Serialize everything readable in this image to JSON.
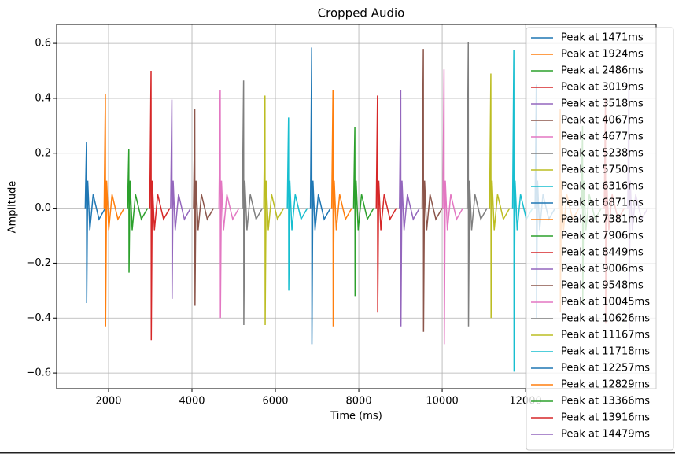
{
  "chart_data": {
    "type": "line",
    "title": "Cropped Audio",
    "xlabel": "Time (ms)",
    "ylabel": "Amplitude",
    "xlim": [
      755,
      15130
    ],
    "ylim": [
      -0.657,
      0.669
    ],
    "xticks": [
      2000,
      4000,
      6000,
      8000,
      10000,
      12000
    ],
    "yticks": [
      {
        "value": -0.6,
        "label": "−0.6"
      },
      {
        "value": -0.4,
        "label": "−0.4"
      },
      {
        "value": -0.2,
        "label": "−0.2"
      },
      {
        "value": 0,
        "label": "0.0"
      },
      0.2,
      0.4,
      0.6
    ],
    "grid": true,
    "legend": "upper right",
    "series": [
      {
        "name": "Peak at 1471ms",
        "color": "#1f77b4",
        "x": [
          1441,
          1471,
          1476,
          1501,
          1551,
          1631,
          1771,
          1921
        ],
        "values": [
          0,
          0.24,
          -0.345,
          0.1,
          -0.08,
          0.05,
          -0.04,
          0
        ]
      },
      {
        "name": "Peak at 1924ms",
        "color": "#ff7f0e",
        "x": [
          1894,
          1924,
          1929,
          1954,
          2004,
          2084,
          2224,
          2374
        ],
        "values": [
          0,
          0.415,
          -0.43,
          0.1,
          -0.08,
          0.05,
          -0.04,
          0
        ]
      },
      {
        "name": "Peak at 2486ms",
        "color": "#2ca02c",
        "x": [
          2456,
          2486,
          2491,
          2516,
          2566,
          2646,
          2786,
          2936
        ],
        "values": [
          0,
          0.215,
          -0.235,
          0.1,
          -0.08,
          0.05,
          -0.04,
          0
        ]
      },
      {
        "name": "Peak at 3019ms",
        "color": "#d62728",
        "x": [
          2989,
          3019,
          3024,
          3049,
          3099,
          3179,
          3319,
          3469
        ],
        "values": [
          0,
          0.5,
          -0.48,
          0.1,
          -0.08,
          0.05,
          -0.04,
          0
        ]
      },
      {
        "name": "Peak at 3518ms",
        "color": "#9467bd",
        "x": [
          3488,
          3518,
          3523,
          3548,
          3598,
          3678,
          3818,
          3968
        ],
        "values": [
          0,
          0.395,
          -0.33,
          0.1,
          -0.08,
          0.05,
          -0.04,
          0
        ]
      },
      {
        "name": "Peak at 4067ms",
        "color": "#8c564b",
        "x": [
          4037,
          4067,
          4072,
          4097,
          4147,
          4227,
          4367,
          4517
        ],
        "values": [
          0,
          0.36,
          -0.355,
          0.1,
          -0.08,
          0.05,
          -0.04,
          0
        ]
      },
      {
        "name": "Peak at 4677ms",
        "color": "#e377c2",
        "x": [
          4647,
          4677,
          4682,
          4707,
          4757,
          4837,
          4977,
          5127
        ],
        "values": [
          0,
          0.43,
          -0.4,
          0.1,
          -0.08,
          0.05,
          -0.04,
          0
        ]
      },
      {
        "name": "Peak at 5238ms",
        "color": "#7f7f7f",
        "x": [
          5208,
          5238,
          5243,
          5268,
          5318,
          5398,
          5538,
          5688
        ],
        "values": [
          0,
          0.465,
          -0.425,
          0.1,
          -0.08,
          0.05,
          -0.04,
          0
        ]
      },
      {
        "name": "Peak at 5750ms",
        "color": "#bcbd22",
        "x": [
          5720,
          5750,
          5755,
          5780,
          5830,
          5910,
          6050,
          6200
        ],
        "values": [
          0,
          0.41,
          -0.425,
          0.1,
          -0.08,
          0.05,
          -0.04,
          0
        ]
      },
      {
        "name": "Peak at 6316ms",
        "color": "#17becf",
        "x": [
          6286,
          6316,
          6321,
          6346,
          6396,
          6476,
          6616,
          6766
        ],
        "values": [
          0,
          0.33,
          -0.3,
          0.1,
          -0.08,
          0.05,
          -0.04,
          0
        ]
      },
      {
        "name": "Peak at 6871ms",
        "color": "#1f77b4",
        "x": [
          6841,
          6871,
          6876,
          6901,
          6951,
          7031,
          7171,
          7321
        ],
        "values": [
          0,
          0.585,
          -0.495,
          0.1,
          -0.08,
          0.05,
          -0.04,
          0
        ]
      },
      {
        "name": "Peak at 7381ms",
        "color": "#ff7f0e",
        "x": [
          7351,
          7381,
          7386,
          7411,
          7461,
          7541,
          7681,
          7831
        ],
        "values": [
          0,
          0.43,
          -0.43,
          0.1,
          -0.08,
          0.05,
          -0.04,
          0
        ]
      },
      {
        "name": "Peak at 7906ms",
        "color": "#2ca02c",
        "x": [
          7876,
          7906,
          7911,
          7936,
          7986,
          8066,
          8206,
          8356
        ],
        "values": [
          0,
          0.295,
          -0.32,
          0.1,
          -0.08,
          0.05,
          -0.04,
          0
        ]
      },
      {
        "name": "Peak at 8449ms",
        "color": "#d62728",
        "x": [
          8419,
          8449,
          8454,
          8479,
          8529,
          8609,
          8749,
          8899
        ],
        "values": [
          0,
          0.41,
          -0.38,
          0.1,
          -0.08,
          0.05,
          -0.04,
          0
        ]
      },
      {
        "name": "Peak at 9006ms",
        "color": "#9467bd",
        "x": [
          8976,
          9006,
          9011,
          9036,
          9086,
          9166,
          9306,
          9456
        ],
        "values": [
          0,
          0.43,
          -0.43,
          0.1,
          -0.08,
          0.05,
          -0.04,
          0
        ]
      },
      {
        "name": "Peak at 9548ms",
        "color": "#8c564b",
        "x": [
          9518,
          9548,
          9553,
          9578,
          9628,
          9708,
          9848,
          9998
        ],
        "values": [
          0,
          0.58,
          -0.45,
          0.1,
          -0.08,
          0.05,
          -0.04,
          0
        ]
      },
      {
        "name": "Peak at 10045ms",
        "color": "#e377c2",
        "x": [
          10015,
          10045,
          10050,
          10075,
          10125,
          10205,
          10345,
          10495
        ],
        "values": [
          0,
          0.505,
          -0.495,
          0.1,
          -0.08,
          0.05,
          -0.04,
          0
        ]
      },
      {
        "name": "Peak at 10626ms",
        "color": "#7f7f7f",
        "x": [
          10596,
          10626,
          10631,
          10656,
          10706,
          10786,
          10926,
          11076
        ],
        "values": [
          0,
          0.605,
          -0.43,
          0.1,
          -0.08,
          0.05,
          -0.04,
          0
        ]
      },
      {
        "name": "Peak at 11167ms",
        "color": "#bcbd22",
        "x": [
          11137,
          11167,
          11172,
          11197,
          11247,
          11327,
          11467,
          11617
        ],
        "values": [
          0,
          0.49,
          -0.4,
          0.1,
          -0.08,
          0.05,
          -0.04,
          0
        ]
      },
      {
        "name": "Peak at 11718ms",
        "color": "#17becf",
        "x": [
          11688,
          11718,
          11723,
          11748,
          11798,
          11878,
          12018,
          12168
        ],
        "values": [
          0,
          0.575,
          -0.595,
          0.1,
          -0.08,
          0.05,
          -0.04,
          0
        ]
      },
      {
        "name": "Peak at 12257ms",
        "color": "#1f77b4",
        "x": [
          12227,
          12257,
          12262,
          12287,
          12337,
          12417,
          12557,
          12707
        ],
        "values": [
          0,
          0.45,
          -0.4,
          0.1,
          -0.08,
          0.05,
          -0.04,
          0
        ]
      },
      {
        "name": "Peak at 12829ms",
        "color": "#ff7f0e",
        "x": [
          12799,
          12829,
          12834,
          12859,
          12909,
          12989,
          13129,
          13279
        ],
        "values": [
          0,
          0.36,
          -0.38,
          0.1,
          -0.08,
          0.05,
          -0.04,
          0
        ]
      },
      {
        "name": "Peak at 13366ms",
        "color": "#2ca02c",
        "x": [
          13336,
          13366,
          13371,
          13396,
          13446,
          13526,
          13666,
          13816
        ],
        "values": [
          0,
          0.3,
          -0.35,
          0.1,
          -0.08,
          0.05,
          -0.04,
          0
        ]
      },
      {
        "name": "Peak at 13916ms",
        "color": "#d62728",
        "x": [
          13886,
          13916,
          13921,
          13946,
          13996,
          14076,
          14216,
          14366
        ],
        "values": [
          0,
          0.4,
          -0.42,
          0.1,
          -0.08,
          0.05,
          -0.04,
          0
        ]
      },
      {
        "name": "Peak at 14479ms",
        "color": "#9467bd",
        "x": [
          14449,
          14479,
          14484,
          14509,
          14559,
          14639,
          14779,
          14929
        ],
        "values": [
          0,
          0.5,
          -0.44,
          0.1,
          -0.08,
          0.05,
          -0.04,
          0
        ]
      }
    ]
  }
}
